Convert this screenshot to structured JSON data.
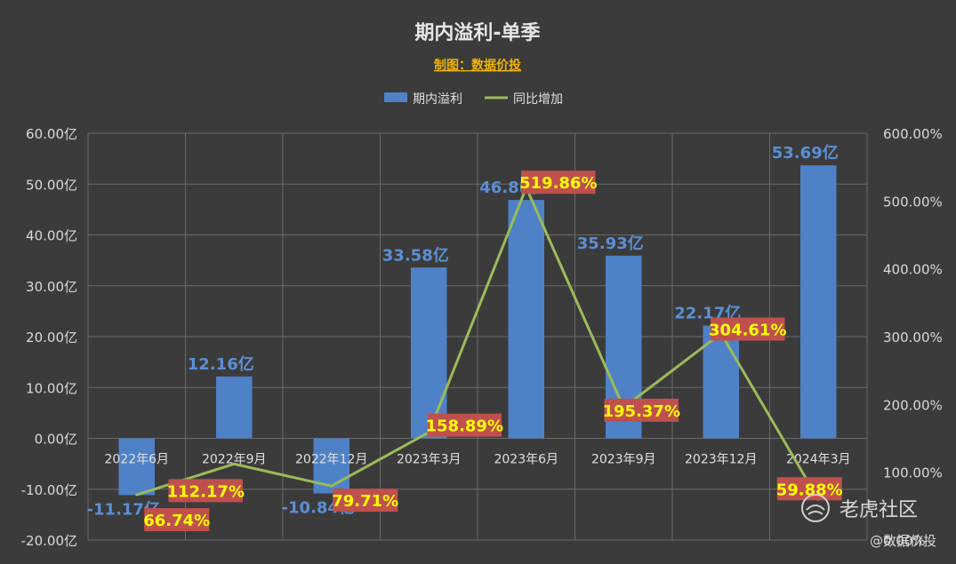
{
  "chart_data": {
    "type": "bar",
    "title": "期内溢利-单季",
    "subtitle": "制图：数据价投",
    "legend": {
      "placement": "top",
      "items": [
        {
          "name": "期内溢利",
          "kind": "bar"
        },
        {
          "name": "同比增加",
          "kind": "line"
        }
      ]
    },
    "categories": [
      "2022年6月",
      "2022年9月",
      "2022年12月",
      "2023年3月",
      "2023年6月",
      "2023年9月",
      "2023年12月",
      "2024年3月"
    ],
    "series": [
      {
        "name": "期内溢利",
        "type": "bar",
        "axis": "left",
        "values": [
          -11.17,
          12.16,
          -10.84,
          33.58,
          46.88,
          35.93,
          22.17,
          53.69
        ],
        "labels": [
          "-11.17亿",
          "12.16亿",
          "-10.84亿",
          "33.58亿",
          "46.88亿",
          "35.93亿",
          "22.17亿",
          "53.69亿"
        ],
        "color": "#4f81c7"
      },
      {
        "name": "同比增加",
        "type": "line",
        "axis": "right",
        "values": [
          66.74,
          112.17,
          79.71,
          158.89,
          519.86,
          195.37,
          304.61,
          59.88
        ],
        "labels": [
          "66.74%",
          "112.17%",
          "79.71%",
          "158.89%",
          "519.86%",
          "195.37%",
          "304.61%",
          "59.88%"
        ],
        "color": "#9bbb59"
      }
    ],
    "y_left": {
      "min": -20,
      "max": 60,
      "step": 10,
      "ticks": [
        "-20.00亿",
        "-10.00亿",
        "0.00亿",
        "10.00亿",
        "20.00亿",
        "30.00亿",
        "40.00亿",
        "50.00亿",
        "60.00亿"
      ]
    },
    "y_right": {
      "min": 0,
      "max": 600,
      "step": 100,
      "ticks": [
        "0.00%",
        "100.00%",
        "200.00%",
        "300.00%",
        "400.00%",
        "500.00%",
        "600.00%"
      ]
    },
    "grid": true
  },
  "watermark": {
    "brand": "老虎社区",
    "handle": "@数据价投"
  },
  "colors": {
    "background": "#3b3b3b",
    "grid": "#6a6a6a",
    "bar": "#4f81c7",
    "line": "#9bbb59",
    "bar_label": "#5b8fd6",
    "pct_label_bg": "#c0504d",
    "pct_label_text": "#ffff00",
    "subtitle": "#f0b400"
  }
}
